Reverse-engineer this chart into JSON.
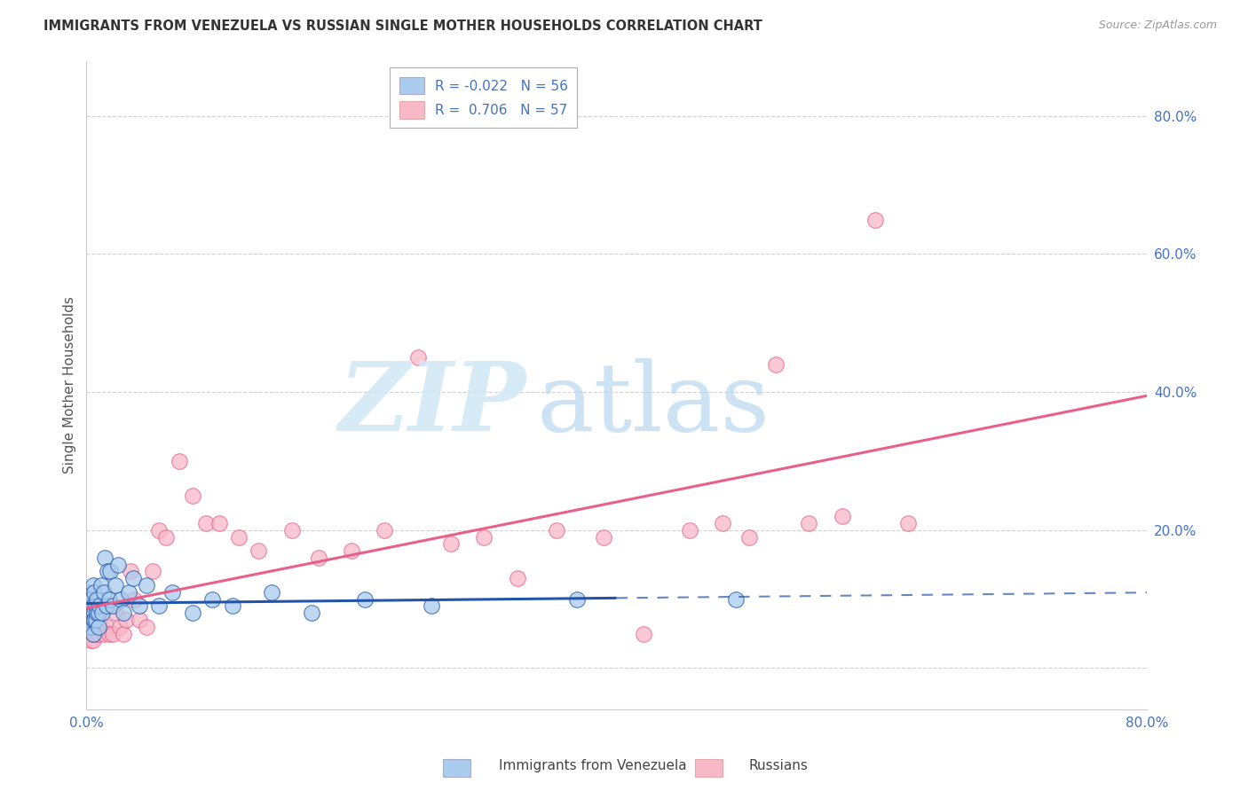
{
  "title": "IMMIGRANTS FROM VENEZUELA VS RUSSIAN SINGLE MOTHER HOUSEHOLDS CORRELATION CHART",
  "source": "Source: ZipAtlas.com",
  "ylabel": "Single Mother Households",
  "legend_label1": "Immigrants from Venezuela",
  "legend_label2": "Russians",
  "R1": -0.022,
  "N1": 56,
  "R2": 0.706,
  "N2": 57,
  "color_blue": "#aaccee",
  "color_pink": "#f8b8c8",
  "line_blue": "#2255aa",
  "line_pink": "#e8608a",
  "background": "#ffffff",
  "xlim": [
    0.0,
    0.8
  ],
  "ylim": [
    -0.06,
    0.88
  ],
  "blue_x": [
    0.001,
    0.001,
    0.001,
    0.002,
    0.002,
    0.002,
    0.002,
    0.003,
    0.003,
    0.003,
    0.003,
    0.004,
    0.004,
    0.004,
    0.005,
    0.005,
    0.005,
    0.005,
    0.006,
    0.006,
    0.006,
    0.007,
    0.007,
    0.008,
    0.008,
    0.009,
    0.009,
    0.01,
    0.011,
    0.012,
    0.013,
    0.014,
    0.015,
    0.016,
    0.017,
    0.018,
    0.02,
    0.022,
    0.024,
    0.026,
    0.028,
    0.032,
    0.035,
    0.04,
    0.045,
    0.055,
    0.065,
    0.08,
    0.095,
    0.11,
    0.14,
    0.17,
    0.21,
    0.26,
    0.37,
    0.49
  ],
  "blue_y": [
    0.08,
    0.1,
    0.07,
    0.09,
    0.11,
    0.06,
    0.07,
    0.08,
    0.1,
    0.07,
    0.09,
    0.06,
    0.08,
    0.1,
    0.07,
    0.09,
    0.12,
    0.05,
    0.08,
    0.11,
    0.07,
    0.09,
    0.07,
    0.1,
    0.08,
    0.08,
    0.06,
    0.09,
    0.12,
    0.08,
    0.11,
    0.16,
    0.09,
    0.14,
    0.1,
    0.14,
    0.09,
    0.12,
    0.15,
    0.1,
    0.08,
    0.11,
    0.13,
    0.09,
    0.12,
    0.09,
    0.11,
    0.08,
    0.1,
    0.09,
    0.11,
    0.08,
    0.1,
    0.09,
    0.1,
    0.1
  ],
  "pink_x": [
    0.001,
    0.001,
    0.002,
    0.002,
    0.003,
    0.003,
    0.004,
    0.004,
    0.005,
    0.005,
    0.006,
    0.006,
    0.007,
    0.008,
    0.009,
    0.01,
    0.011,
    0.013,
    0.015,
    0.017,
    0.02,
    0.022,
    0.025,
    0.028,
    0.03,
    0.033,
    0.036,
    0.04,
    0.045,
    0.05,
    0.055,
    0.06,
    0.07,
    0.08,
    0.09,
    0.1,
    0.115,
    0.13,
    0.155,
    0.175,
    0.2,
    0.225,
    0.25,
    0.275,
    0.3,
    0.325,
    0.355,
    0.39,
    0.42,
    0.455,
    0.48,
    0.5,
    0.52,
    0.545,
    0.57,
    0.595,
    0.62
  ],
  "pink_y": [
    0.07,
    0.05,
    0.09,
    0.05,
    0.08,
    0.04,
    0.07,
    0.05,
    0.09,
    0.04,
    0.08,
    0.05,
    0.06,
    0.07,
    0.05,
    0.08,
    0.06,
    0.05,
    0.06,
    0.05,
    0.05,
    0.08,
    0.06,
    0.05,
    0.07,
    0.14,
    0.1,
    0.07,
    0.06,
    0.14,
    0.2,
    0.19,
    0.3,
    0.25,
    0.21,
    0.21,
    0.19,
    0.17,
    0.2,
    0.16,
    0.17,
    0.2,
    0.45,
    0.18,
    0.19,
    0.13,
    0.2,
    0.19,
    0.05,
    0.2,
    0.21,
    0.19,
    0.44,
    0.21,
    0.22,
    0.65,
    0.21
  ],
  "blue_line_solid_end": 0.4,
  "watermark_zip_color": "#d0e8f5",
  "watermark_atlas_color": "#b8d8f0"
}
